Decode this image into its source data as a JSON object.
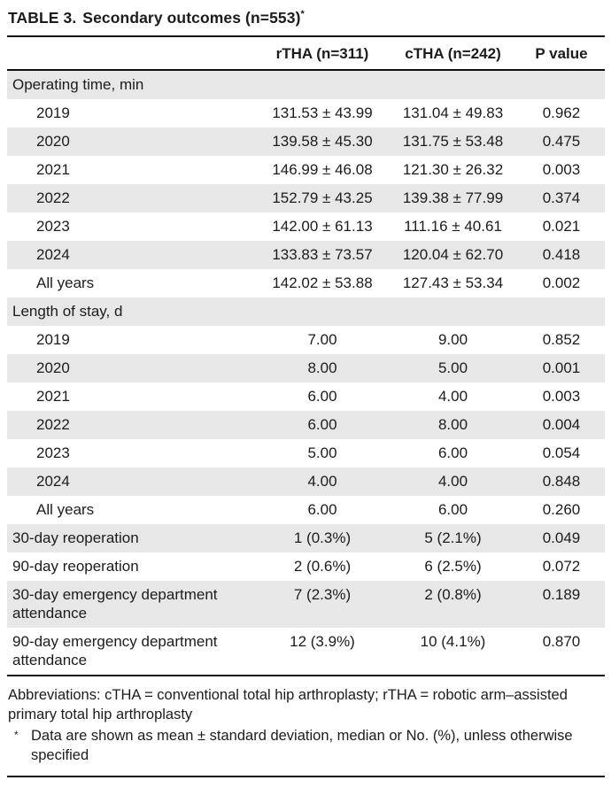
{
  "title": {
    "label": "TABLE 3.",
    "text": "Secondary outcomes (n=553)",
    "superscript": "*"
  },
  "header": {
    "rtha": "rTHA (n=311)",
    "ctha": "cTHA (n=242)",
    "pvalue": "P value"
  },
  "rows": [
    {
      "label": "Operating time, min",
      "type": "section"
    },
    {
      "label": "2019",
      "rtha": "131.53 ± 43.99",
      "ctha": "131.04 ± 49.83",
      "p": "0.962"
    },
    {
      "label": "2020",
      "rtha": "139.58 ± 45.30",
      "ctha": "131.75 ± 53.48",
      "p": "0.475"
    },
    {
      "label": "2021",
      "rtha": "146.99 ± 46.08",
      "ctha": "121.30 ± 26.32",
      "p": "0.003"
    },
    {
      "label": "2022",
      "rtha": "152.79 ± 43.25",
      "ctha": "139.38 ± 77.99",
      "p": "0.374"
    },
    {
      "label": "2023",
      "rtha": "142.00 ± 61.13",
      "ctha": "111.16 ± 40.61",
      "p": "0.021"
    },
    {
      "label": "2024",
      "rtha": "133.83 ± 73.57",
      "ctha": "120.04 ± 62.70",
      "p": "0.418"
    },
    {
      "label": "All years",
      "rtha": "142.02 ± 53.88",
      "ctha": "127.43 ± 53.34",
      "p": "0.002"
    },
    {
      "label": "Length of stay, d",
      "type": "section"
    },
    {
      "label": "2019",
      "rtha": "7.00",
      "ctha": "9.00",
      "p": "0.852"
    },
    {
      "label": "2020",
      "rtha": "8.00",
      "ctha": "5.00",
      "p": "0.001"
    },
    {
      "label": "2021",
      "rtha": "6.00",
      "ctha": "4.00",
      "p": "0.003"
    },
    {
      "label": "2022",
      "rtha": "6.00",
      "ctha": "8.00",
      "p": "0.004"
    },
    {
      "label": "2023",
      "rtha": "5.00",
      "ctha": "6.00",
      "p": "0.054"
    },
    {
      "label": "2024",
      "rtha": "4.00",
      "ctha": "4.00",
      "p": "0.848"
    },
    {
      "label": "All years",
      "rtha": "6.00",
      "ctha": "6.00",
      "p": "0.260"
    },
    {
      "label": "30-day reoperation",
      "rtha": "1 (0.3%)",
      "ctha": "5 (2.1%)",
      "p": "0.049"
    },
    {
      "label": "90-day reoperation",
      "rtha": "2 (0.6%)",
      "ctha": "6 (2.5%)",
      "p": "0.072"
    },
    {
      "label": "30-day emergency department attendance",
      "rtha": "7 (2.3%)",
      "ctha": "2 (0.8%)",
      "p": "0.189"
    },
    {
      "label": "90-day emergency department attendance",
      "rtha": "12 (3.9%)",
      "ctha": "10 (4.1%)",
      "p": "0.870"
    }
  ],
  "footnotes": {
    "abbreviations": "Abbreviations: cTHA = conventional total hip arthroplasty; rTHA = robotic arm–assisted primary total hip arthroplasty",
    "marker": "*",
    "note": "Data are shown as mean ± standard deviation, median or No. (%), unless otherwise specified"
  },
  "colors": {
    "stripe": "#e7e7e7",
    "rule": "#111111",
    "text": "#1c1c1c"
  }
}
